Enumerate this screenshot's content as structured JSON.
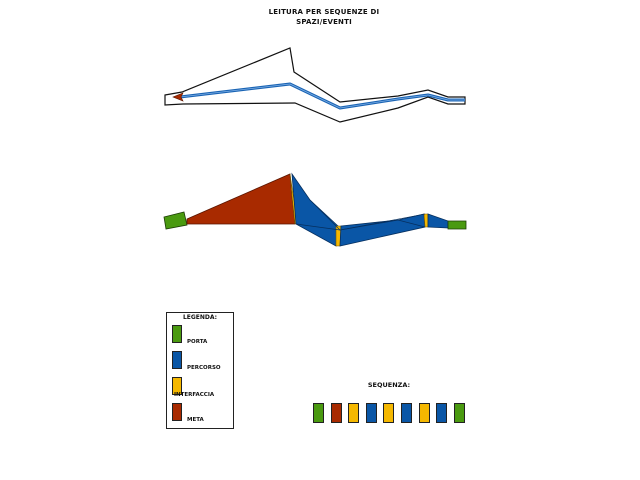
{
  "title": {
    "line1": "LEITURA PER SEQUENZE DI",
    "line2": "SPAZI/EVENTI"
  },
  "colors": {
    "porta": "#4a9a10",
    "percorso": "#0a56a6",
    "interfaccia": "#f5b800",
    "meta": "#a82a00",
    "path_line": "#1a64b4",
    "outline": "#111111"
  },
  "legend": {
    "title": "LEGENDA:",
    "items": [
      {
        "label": "PORTA",
        "color": "#4a9a10"
      },
      {
        "label": "PERCORSO",
        "color": "#0a56a6"
      },
      {
        "label": "INTERFACCIA",
        "color": "#f5b800"
      },
      {
        "label": "META",
        "color": "#a82a00"
      }
    ]
  },
  "sequence": {
    "title": "SEQUENZA:",
    "items": [
      "porta",
      "meta",
      "interfaccia",
      "percorso",
      "interfaccia",
      "percorso",
      "interfaccia",
      "percorso",
      "porta"
    ]
  }
}
